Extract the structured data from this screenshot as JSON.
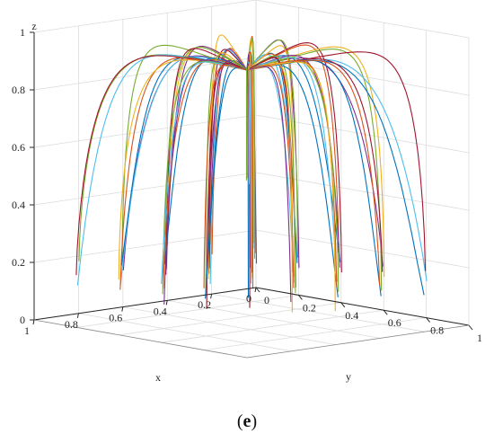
{
  "chart_data": {
    "type": "line",
    "subtype": "3d-trajectories",
    "xlabel": "x",
    "ylabel": "y",
    "zlabel": "z",
    "xlim": [
      0,
      1
    ],
    "ylim": [
      0,
      1
    ],
    "zlim": [
      0,
      1
    ],
    "xticks": [
      "0",
      "0.2",
      "0.4",
      "0.6",
      "0.8",
      "1"
    ],
    "yticks": [
      "0",
      "0.2",
      "0.4",
      "0.6",
      "0.8",
      "1"
    ],
    "zticks": [
      "0",
      "0.2",
      "0.4",
      "0.6",
      "0.8",
      "1"
    ],
    "grid": true,
    "convergence_point": [
      1,
      1,
      1
    ],
    "start_z": 0.1,
    "start_points": [
      [
        0.1,
        0.1
      ],
      [
        0.1,
        0.3
      ],
      [
        0.1,
        0.5
      ],
      [
        0.1,
        0.7
      ],
      [
        0.1,
        0.9
      ],
      [
        0.3,
        0.1
      ],
      [
        0.3,
        0.3
      ],
      [
        0.3,
        0.5
      ],
      [
        0.3,
        0.7
      ],
      [
        0.3,
        0.9
      ],
      [
        0.5,
        0.1
      ],
      [
        0.5,
        0.3
      ],
      [
        0.5,
        0.5
      ],
      [
        0.5,
        0.7
      ],
      [
        0.5,
        0.9
      ],
      [
        0.7,
        0.1
      ],
      [
        0.7,
        0.3
      ],
      [
        0.7,
        0.5
      ],
      [
        0.7,
        0.7
      ],
      [
        0.7,
        0.9
      ],
      [
        0.9,
        0.1
      ],
      [
        0.9,
        0.3
      ],
      [
        0.9,
        0.5
      ],
      [
        0.9,
        0.7
      ],
      [
        0.9,
        0.9
      ]
    ],
    "series_colors": [
      "#0072bd",
      "#d95319",
      "#edb120",
      "#7e2f8e",
      "#77ac30",
      "#4dbeee",
      "#a2142f"
    ]
  },
  "caption": {
    "open": "(",
    "letter": "e",
    "close": ")"
  }
}
